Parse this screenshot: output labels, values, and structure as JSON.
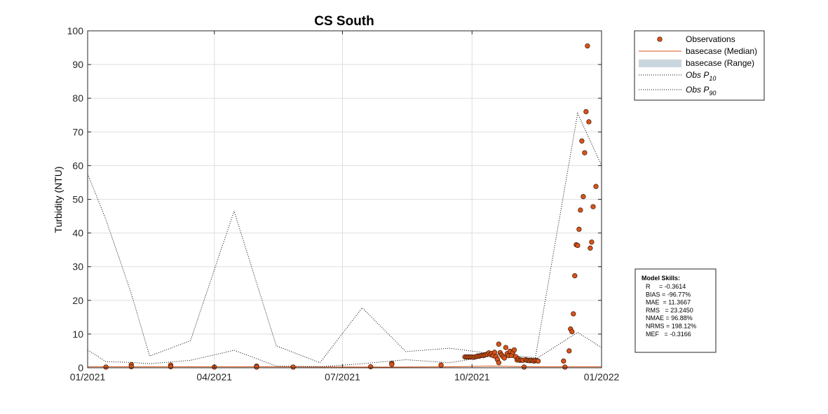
{
  "chart_data": {
    "type": "scatter",
    "title": "CS South",
    "xlabel": "",
    "ylabel": "Turbidity (NTU)",
    "x_start": "2021-01-01",
    "x_end": "2022-01-01",
    "xlim": [
      "2021-01-01",
      "2022-01-01"
    ],
    "ylim": [
      0,
      100
    ],
    "yticks": [
      "0",
      "10",
      "20",
      "30",
      "40",
      "50",
      "60",
      "70",
      "80",
      "90",
      "100"
    ],
    "xticks": [
      {
        "date": "2021-01-01",
        "label": "01/2021"
      },
      {
        "date": "2021-04-01",
        "label": "04/2021"
      },
      {
        "date": "2021-07-01",
        "label": "07/2021"
      },
      {
        "date": "2021-10-01",
        "label": "10/2021"
      },
      {
        "date": "2022-01-01",
        "label": "01/2022"
      }
    ],
    "grid": true,
    "legend_position": "outside-top-right",
    "series": [
      {
        "name": "Observations",
        "kind": "markers",
        "color": "#d95319",
        "points": [
          [
            "2021-01-14",
            0.2
          ],
          [
            "2021-02-01",
            0.9
          ],
          [
            "2021-02-01",
            0.3
          ],
          [
            "2021-03-01",
            0.8
          ],
          [
            "2021-03-01",
            0.3
          ],
          [
            "2021-04-01",
            0.2
          ],
          [
            "2021-05-01",
            0.5
          ],
          [
            "2021-05-01",
            0.2
          ],
          [
            "2021-05-27",
            0.2
          ],
          [
            "2021-07-21",
            0.3
          ],
          [
            "2021-08-05",
            1.3
          ],
          [
            "2021-08-05",
            1.0
          ],
          [
            "2021-09-09",
            0.8
          ],
          [
            "2021-09-26",
            3.2
          ],
          [
            "2021-09-27",
            3.2
          ],
          [
            "2021-09-28",
            3.2
          ],
          [
            "2021-09-29",
            3.2
          ],
          [
            "2021-09-30",
            3.2
          ],
          [
            "2021-10-01",
            3.2
          ],
          [
            "2021-10-02",
            3.1
          ],
          [
            "2021-10-03",
            3.2
          ],
          [
            "2021-10-04",
            3.3
          ],
          [
            "2021-10-05",
            3.5
          ],
          [
            "2021-10-06",
            3.4
          ],
          [
            "2021-10-07",
            3.6
          ],
          [
            "2021-10-08",
            3.7
          ],
          [
            "2021-10-09",
            3.6
          ],
          [
            "2021-10-10",
            3.8
          ],
          [
            "2021-10-11",
            3.9
          ],
          [
            "2021-10-12",
            4.1
          ],
          [
            "2021-10-13",
            4.4
          ],
          [
            "2021-10-14",
            3.9
          ],
          [
            "2021-10-15",
            4.2
          ],
          [
            "2021-10-16",
            3.6
          ],
          [
            "2021-10-17",
            4.6
          ],
          [
            "2021-10-18",
            3.3
          ],
          [
            "2021-10-19",
            2.5
          ],
          [
            "2021-10-20",
            7.0
          ],
          [
            "2021-10-20",
            1.5
          ],
          [
            "2021-10-21",
            4.5
          ],
          [
            "2021-10-22",
            3.8
          ],
          [
            "2021-10-23",
            3.3
          ],
          [
            "2021-10-24",
            2.9
          ],
          [
            "2021-10-25",
            6.0
          ],
          [
            "2021-10-26",
            4.2
          ],
          [
            "2021-10-27",
            3.6
          ],
          [
            "2021-10-28",
            4.9
          ],
          [
            "2021-10-29",
            3.7
          ],
          [
            "2021-10-30",
            4.6
          ],
          [
            "2021-10-31",
            5.3
          ],
          [
            "2021-11-01",
            3.3
          ],
          [
            "2021-11-02",
            2.3
          ],
          [
            "2021-11-03",
            2.6
          ],
          [
            "2021-11-04",
            2.2
          ],
          [
            "2021-11-05",
            2.3
          ],
          [
            "2021-11-06",
            2.2
          ],
          [
            "2021-11-07",
            0.2
          ],
          [
            "2021-11-08",
            2.4
          ],
          [
            "2021-11-09",
            2.2
          ],
          [
            "2021-11-10",
            2.2
          ],
          [
            "2021-11-11",
            2.1
          ],
          [
            "2021-11-12",
            2.2
          ],
          [
            "2021-11-13",
            2.1
          ],
          [
            "2021-11-14",
            2.0
          ],
          [
            "2021-11-15",
            2.2
          ],
          [
            "2021-11-16",
            2.1
          ],
          [
            "2021-11-17",
            2.0
          ],
          [
            "2021-12-05",
            2.0
          ],
          [
            "2021-12-06",
            0.2
          ],
          [
            "2021-12-09",
            5.0
          ],
          [
            "2021-12-10",
            11.5
          ],
          [
            "2021-12-11",
            10.7
          ],
          [
            "2021-12-12",
            16.0
          ],
          [
            "2021-12-13",
            27.3
          ],
          [
            "2021-12-14",
            36.5
          ],
          [
            "2021-12-15",
            36.3
          ],
          [
            "2021-12-16",
            41.1
          ],
          [
            "2021-12-17",
            46.8
          ],
          [
            "2021-12-18",
            67.3
          ],
          [
            "2021-12-19",
            50.8
          ],
          [
            "2021-12-20",
            63.8
          ],
          [
            "2021-12-21",
            76.0
          ],
          [
            "2021-12-22",
            95.5
          ],
          [
            "2021-12-23",
            73.0
          ],
          [
            "2021-12-24",
            35.5
          ],
          [
            "2021-12-25",
            37.3
          ],
          [
            "2021-12-26",
            47.8
          ],
          [
            "2021-12-28",
            53.8
          ]
        ]
      },
      {
        "name": "basecase (Median)",
        "kind": "line",
        "color": "#d95319",
        "points": [
          [
            "2021-01-01",
            0.3
          ],
          [
            "2021-05-15",
            0.3
          ],
          [
            "2021-08-01",
            0.2
          ],
          [
            "2021-09-15",
            0.3
          ],
          [
            "2021-10-15",
            0.5
          ],
          [
            "2021-11-15",
            0.3
          ],
          [
            "2022-01-01",
            0.3
          ]
        ]
      },
      {
        "name": "basecase (Range)",
        "kind": "band",
        "color": "#c9d6de",
        "points": []
      },
      {
        "name": "Obs P10",
        "kind": "dotted",
        "color": "#000000",
        "points": [
          [
            "2021-01-01",
            5.3
          ],
          [
            "2021-01-14",
            1.8
          ],
          [
            "2021-02-01",
            1.6
          ],
          [
            "2021-02-14",
            1.2
          ],
          [
            "2021-03-15",
            2.2
          ],
          [
            "2021-04-15",
            5.2
          ],
          [
            "2021-05-15",
            0.5
          ],
          [
            "2021-06-15",
            0.3
          ],
          [
            "2021-07-15",
            1.2
          ],
          [
            "2021-08-15",
            2.4
          ],
          [
            "2021-09-15",
            1.5
          ],
          [
            "2021-10-15",
            3.5
          ],
          [
            "2021-11-15",
            2.5
          ],
          [
            "2021-12-15",
            10.5
          ],
          [
            "2022-01-01",
            6.0
          ]
        ]
      },
      {
        "name": "Obs P90",
        "kind": "dotted",
        "color": "#000000",
        "points": [
          [
            "2021-01-01",
            57.5
          ],
          [
            "2021-01-14",
            44.0
          ],
          [
            "2021-02-01",
            22.0
          ],
          [
            "2021-02-14",
            3.5
          ],
          [
            "2021-03-15",
            8.0
          ],
          [
            "2021-04-15",
            46.5
          ],
          [
            "2021-05-15",
            6.5
          ],
          [
            "2021-06-15",
            1.5
          ],
          [
            "2021-07-15",
            17.8
          ],
          [
            "2021-08-15",
            4.8
          ],
          [
            "2021-09-15",
            5.8
          ],
          [
            "2021-10-15",
            4.2
          ],
          [
            "2021-11-15",
            3.0
          ],
          [
            "2021-12-15",
            75.5
          ],
          [
            "2022-01-01",
            60.0
          ]
        ]
      }
    ],
    "legend": [
      {
        "label": "Observations",
        "sub": ""
      },
      {
        "label": "basecase (Median)",
        "sub": ""
      },
      {
        "label": "basecase (Range)",
        "sub": ""
      },
      {
        "label": "Obs P",
        "sub": "10"
      },
      {
        "label": "Obs P",
        "sub": "90"
      }
    ],
    "skills": {
      "title": "Model Skills:",
      "lines": [
        "R     = -0.3614",
        "BIAS = -96.77%",
        "MAE  = 11.3667",
        "RMS   = 23.2450",
        "NMAE = 96.88%",
        "NRMS = 198.12%",
        "MEF   = -0.3166"
      ]
    }
  }
}
